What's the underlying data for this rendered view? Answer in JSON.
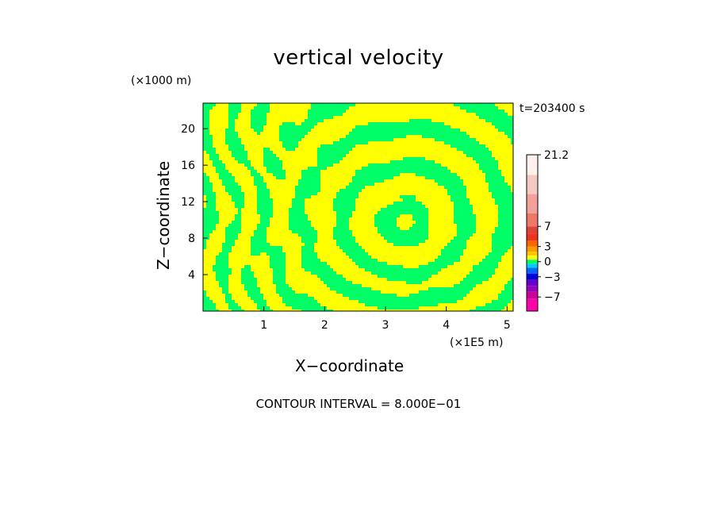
{
  "chart_data": {
    "type": "heatmap",
    "title": "vertical velocity",
    "xlabel": "X−coordinate",
    "ylabel": "Z−coordinate",
    "x_unit": "(×1E5 m)",
    "y_unit": "(×1000 m)",
    "time_label": "t=203400 s",
    "footer": "CONTOUR INTERVAL = 8.000E−01",
    "xlim": [
      0,
      5.1
    ],
    "ylim": [
      0,
      22.8
    ],
    "x_ticks": [
      {
        "value": 1,
        "label": "1"
      },
      {
        "value": 2,
        "label": "2"
      },
      {
        "value": 3,
        "label": "3"
      },
      {
        "value": 4,
        "label": "4"
      },
      {
        "value": 5,
        "label": "5"
      }
    ],
    "y_ticks": [
      {
        "value": 4,
        "label": "4"
      },
      {
        "value": 8,
        "label": "8"
      },
      {
        "value": 12,
        "label": "12"
      },
      {
        "value": 16,
        "label": "16"
      },
      {
        "value": 20,
        "label": "20"
      }
    ],
    "colorbar": {
      "range": [
        -9.8,
        21.2
      ],
      "levels": [
        {
          "from": -9.8,
          "to": -7.4,
          "color": "#ff00aa"
        },
        {
          "from": -7.4,
          "to": -6.0,
          "color": "#cc0099"
        },
        {
          "from": -6.0,
          "to": -4.8,
          "color": "#9900bb"
        },
        {
          "from": -4.8,
          "to": -3.6,
          "color": "#6600cc"
        },
        {
          "from": -3.6,
          "to": -2.4,
          "color": "#0000dd"
        },
        {
          "from": -2.4,
          "to": -1.2,
          "color": "#0066ff"
        },
        {
          "from": -1.2,
          "to": -0.4,
          "color": "#00ccff"
        },
        {
          "from": -0.4,
          "to": 0.4,
          "color": "#00ff66"
        },
        {
          "from": 0.4,
          "to": 1.2,
          "color": "#ffff00"
        },
        {
          "from": 1.2,
          "to": 2.0,
          "color": "#ffcc00"
        },
        {
          "from": 2.0,
          "to": 3.0,
          "color": "#ff9900"
        },
        {
          "from": 3.0,
          "to": 4.2,
          "color": "#ff6600"
        },
        {
          "from": 4.2,
          "to": 5.6,
          "color": "#ee3322"
        },
        {
          "from": 5.6,
          "to": 7.0,
          "color": "#dd4433"
        },
        {
          "from": 7.0,
          "to": 9.6,
          "color": "#ee7766"
        },
        {
          "from": 9.6,
          "to": 13.4,
          "color": "#f2a09a"
        },
        {
          "from": 13.4,
          "to": 17.2,
          "color": "#f6c8c2"
        },
        {
          "from": 17.2,
          "to": 21.2,
          "color": "#fff0ee"
        }
      ],
      "labels": [
        {
          "value": 21.2,
          "label": "21.2"
        },
        {
          "value": 7,
          "label": "7"
        },
        {
          "value": 3,
          "label": "3"
        },
        {
          "value": 0,
          "label": "0"
        },
        {
          "value": -3,
          "label": "−3"
        },
        {
          "value": -7,
          "label": "−7"
        }
      ]
    },
    "field": {
      "dominant_colors": [
        "#ffff00",
        "#00ff66"
      ],
      "description_values": "alternating positive (yellow) and near-zero (green) vertical velocity bands"
    }
  }
}
